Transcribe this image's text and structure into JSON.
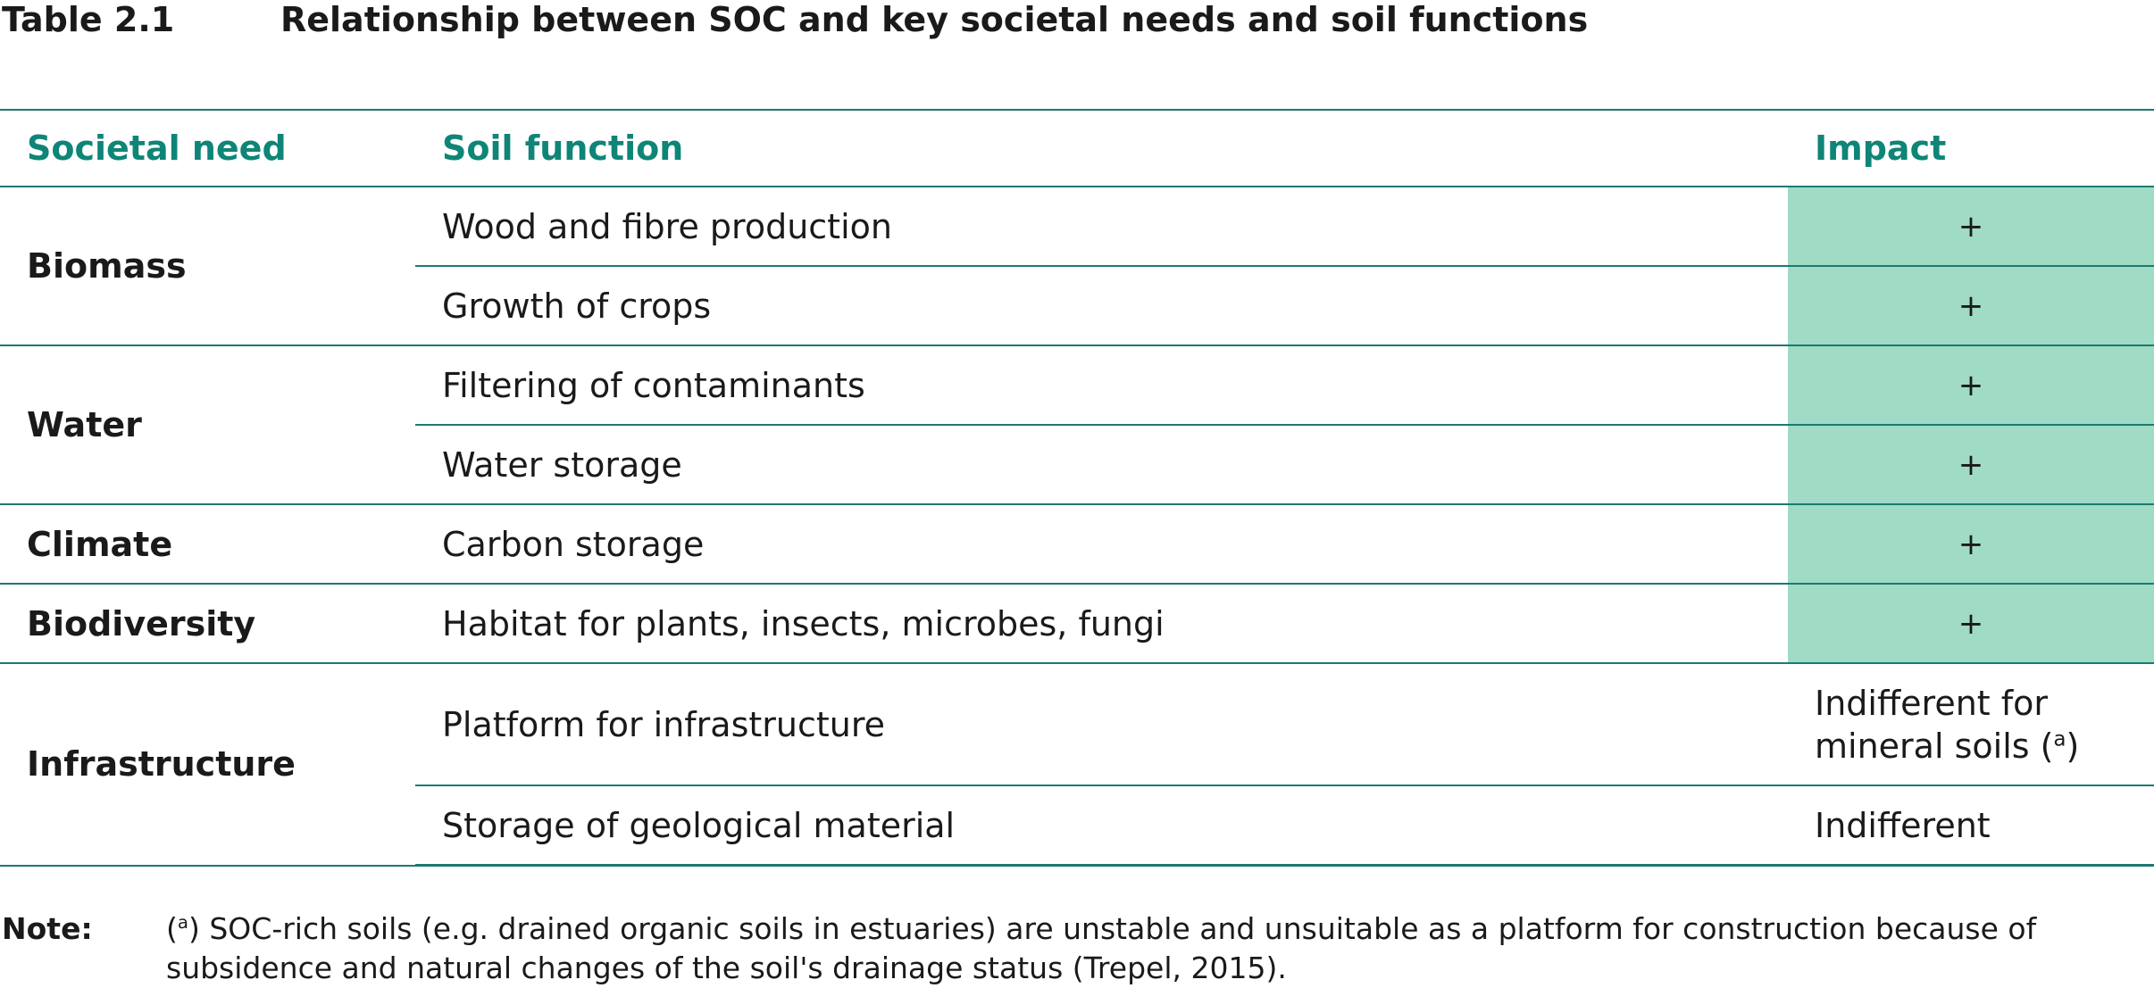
{
  "title": {
    "number": "Table 2.1",
    "text": "Relationship between SOC and key societal needs and soil functions"
  },
  "table": {
    "headers": {
      "need": "Societal need",
      "function": "Soil function",
      "impact": "Impact"
    },
    "rows": [
      {
        "need": "Biomass",
        "function": "Wood and fibre production",
        "impact": "+"
      },
      {
        "need": "Biomass",
        "function": "Growth of crops",
        "impact": "+"
      },
      {
        "need": "Water",
        "function": "Filtering of contaminants",
        "impact": "+"
      },
      {
        "need": "Water",
        "function": "Water storage",
        "impact": "+"
      },
      {
        "need": "Climate",
        "function": "Carbon storage",
        "impact": "+"
      },
      {
        "need": "Biodiversity",
        "function": "Habitat for plants, insects, microbes, fungi",
        "impact": "+"
      },
      {
        "need": "Infrastructure",
        "function": "Platform for infrastructure",
        "impact_line1": "Indifferent for",
        "impact_line2": "mineral soils (",
        "impact_sup": "a",
        "impact_close": ")"
      },
      {
        "need": "Infrastructure",
        "function": "Storage of geological material",
        "impact": "Indifferent"
      }
    ],
    "highlight_color": "#9fdbc5",
    "header_color": "#0e8577",
    "rule_color": "#1c7a72"
  },
  "note": {
    "label": "Note:",
    "open": "(",
    "sup": "a",
    "text": ") SOC-rich soils (e.g. drained organic soils in estuaries) are unstable and unsuitable as a platform for construction because of subsidence and natural changes of the soil's drainage status (Trepel, 2015)."
  }
}
